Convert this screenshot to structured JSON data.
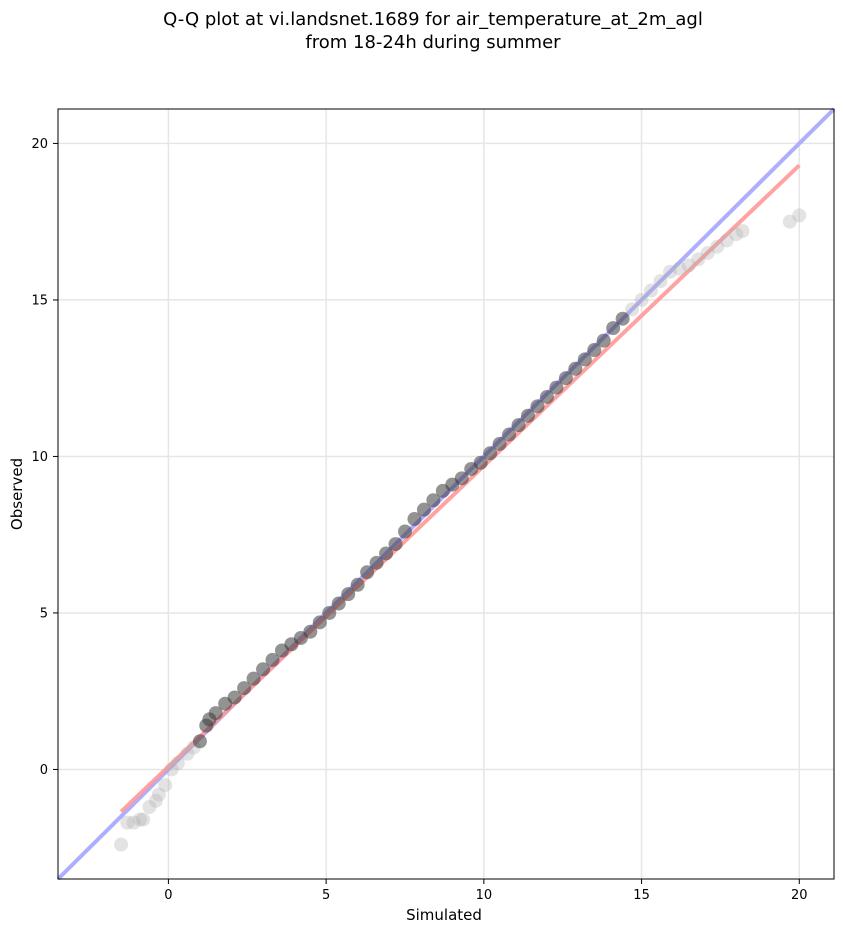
{
  "chart_data": {
    "type": "scatter",
    "title": [
      "Q-Q plot at vi.landsnet.1689 for air_temperature_at_2m_agl",
      "from 18-24h during summer"
    ],
    "xlabel": "Simulated",
    "ylabel": "Observed",
    "xlim": [
      -3.5,
      21.1
    ],
    "ylim": [
      -3.5,
      21.1
    ],
    "xticks": [
      0,
      5,
      10,
      15,
      20
    ],
    "yticks": [
      0,
      5,
      10,
      15,
      20
    ],
    "xtick_labels": [
      "0",
      "5",
      "10",
      "15",
      "20"
    ],
    "ytick_labels": [
      "0",
      "5",
      "10",
      "15",
      "20"
    ],
    "grid": true,
    "series": [
      {
        "role": "quantile points",
        "color": "#444444",
        "x": [
          -1.5,
          -1.3,
          -1.1,
          -0.9,
          -0.8,
          -0.6,
          -0.4,
          -0.3,
          -0.1,
          0.1,
          0.3,
          0.6,
          0.8,
          1.0,
          1.2,
          1.3,
          1.5,
          1.8,
          2.1,
          2.4,
          2.7,
          3.0,
          3.3,
          3.6,
          3.9,
          4.2,
          4.5,
          4.8,
          5.1,
          5.4,
          5.7,
          6.0,
          6.3,
          6.6,
          6.9,
          7.2,
          7.5,
          7.8,
          8.1,
          8.4,
          8.7,
          9.0,
          9.3,
          9.6,
          9.9,
          10.2,
          10.5,
          10.8,
          11.1,
          11.4,
          11.7,
          12.0,
          12.3,
          12.6,
          12.9,
          13.2,
          13.5,
          13.8,
          14.1,
          14.4,
          14.7,
          15.0,
          15.3,
          15.6,
          15.9,
          16.2,
          16.5,
          16.8,
          17.1,
          17.4,
          17.7,
          18.0,
          18.2,
          19.7,
          20.0
        ],
        "y": [
          -2.4,
          -1.7,
          -1.7,
          -1.6,
          -1.6,
          -1.2,
          -1.0,
          -0.8,
          -0.5,
          0.0,
          0.2,
          0.5,
          0.7,
          0.9,
          1.4,
          1.6,
          1.8,
          2.1,
          2.3,
          2.6,
          2.9,
          3.2,
          3.5,
          3.8,
          4.0,
          4.2,
          4.4,
          4.7,
          5.0,
          5.3,
          5.6,
          5.9,
          6.3,
          6.6,
          6.9,
          7.2,
          7.6,
          8.0,
          8.3,
          8.6,
          8.9,
          9.1,
          9.3,
          9.6,
          9.8,
          10.1,
          10.4,
          10.7,
          11.0,
          11.3,
          11.6,
          11.9,
          12.2,
          12.5,
          12.8,
          13.1,
          13.4,
          13.7,
          14.1,
          14.4,
          14.7,
          15.0,
          15.3,
          15.6,
          15.9,
          16.0,
          16.1,
          16.3,
          16.5,
          16.7,
          16.9,
          17.1,
          17.2,
          17.5,
          17.7
        ]
      },
      {
        "role": "identity line",
        "color": "#aaaaff",
        "x": [
          -3.5,
          21.1
        ],
        "y": [
          -3.5,
          21.1
        ]
      },
      {
        "role": "fit line",
        "color": "#ff9999",
        "x": [
          -1.5,
          20.0
        ],
        "y": [
          -1.35,
          19.3
        ]
      }
    ]
  }
}
